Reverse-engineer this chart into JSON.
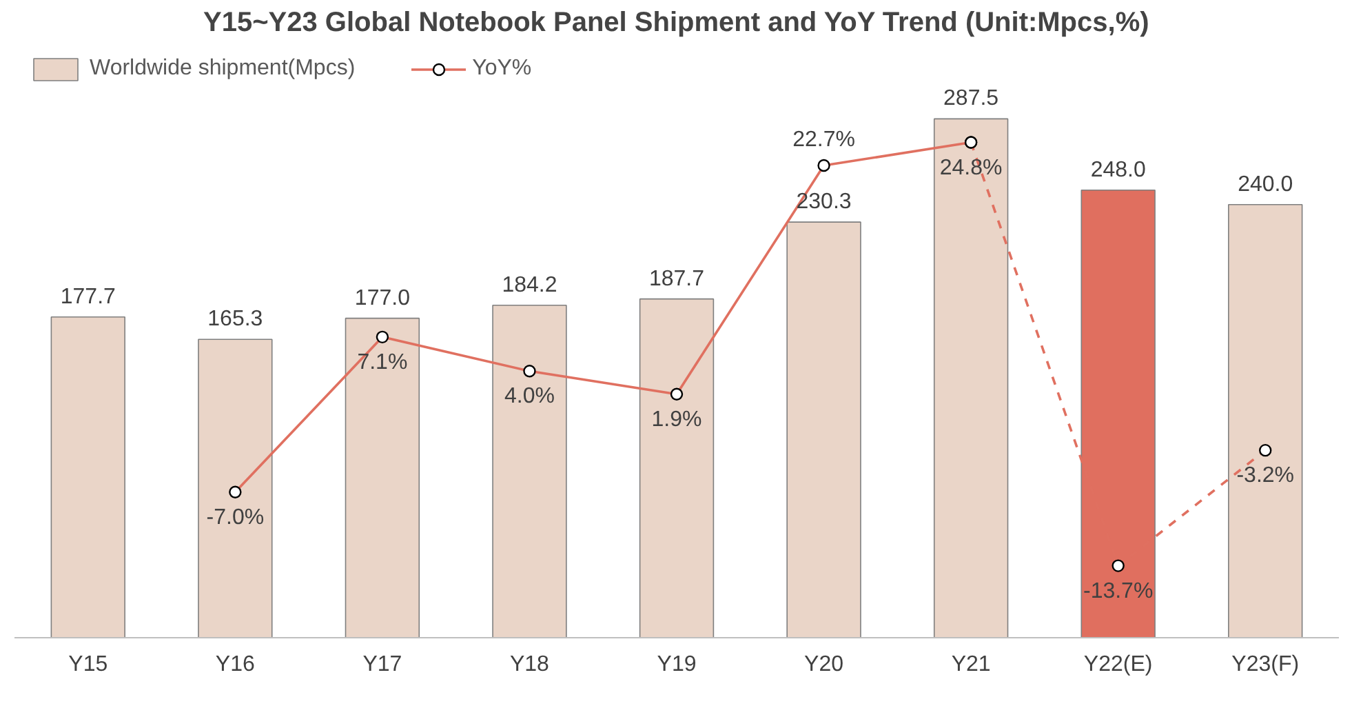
{
  "chart_data": {
    "type": "bar",
    "title": "Y15~Y23 Global Notebook Panel Shipment and YoY Trend (Unit:Mpcs,%)",
    "categories": [
      "Y15",
      "Y16",
      "Y17",
      "Y18",
      "Y19",
      "Y20",
      "Y21",
      "Y22(E)",
      "Y23(F)"
    ],
    "series": [
      {
        "name": "Worldwide shipment(Mpcs)",
        "color": "#ead5c8",
        "colors": [
          null,
          null,
          null,
          null,
          null,
          null,
          null,
          "#e06f5f",
          null
        ],
        "values": [
          177.7,
          165.3,
          177.0,
          184.2,
          187.7,
          230.3,
          287.5,
          248.0,
          240.0
        ],
        "value_labels": [
          "177.7",
          "165.3",
          "177.0",
          "184.2",
          "187.7",
          "230.3",
          "287.5",
          "248.0",
          "240.0"
        ]
      },
      {
        "name": "YoY%",
        "type": "line",
        "axis": "y2",
        "color": "#e07060",
        "marker": "circle",
        "line_style": "solid",
        "values": [
          null,
          -7.0,
          7.1,
          4.0,
          1.9,
          22.7,
          24.8,
          null,
          null
        ],
        "value_labels": [
          null,
          "-7.0%",
          "7.1%",
          "4.0%",
          "1.9%",
          "22.7%",
          "24.8%",
          null,
          null
        ]
      },
      {
        "type": "line",
        "axis": "y2",
        "color": "#e07060",
        "marker": "circle",
        "line_style": "dashed",
        "values": [
          null,
          null,
          null,
          null,
          null,
          null,
          24.8,
          -13.7,
          -3.2
        ],
        "value_labels": [
          null,
          null,
          null,
          null,
          null,
          null,
          null,
          "-13.7%",
          "-3.2%"
        ]
      }
    ],
    "tick_labels": "x",
    "legend": "top left",
    "grid": false
  }
}
